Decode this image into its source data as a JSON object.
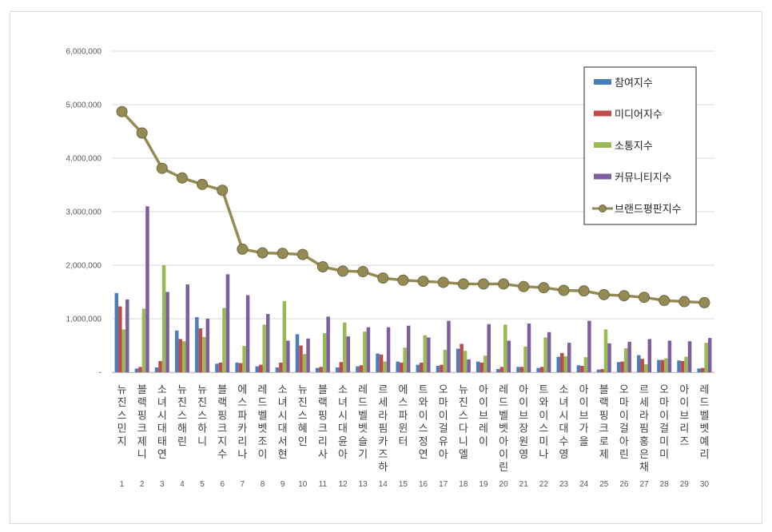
{
  "chart_data": {
    "type": "bar",
    "title": "",
    "xlabel": "",
    "ylabel": "",
    "ylim": [
      0,
      6000000
    ],
    "yticks": [
      "-",
      "1,000,000",
      "2,000,000",
      "3,000,000",
      "4,000,000",
      "5,000,000",
      "6,000,000"
    ],
    "grid": true,
    "legend_position": "top-right",
    "categories": [
      "뉴진스 민지",
      "블랙핑크 제니",
      "소녀시대 태연",
      "뉴진스 해린",
      "뉴진스 하니",
      "블랙핑크 지수",
      "에스파 카리나",
      "레드벨벳 조이",
      "소녀시대 서현",
      "뉴진스 혜인",
      "블랙핑크 리사",
      "소녀시대 윤아",
      "레드벨벳 슬기",
      "르세라핌 카즈하",
      "에스파 윈터",
      "트와이스 정연",
      "오마이걸 유아",
      "뉴진스 다니엘",
      "아이브 레이",
      "레드벨벳 아이린",
      "아이브 장원영",
      "트와이스 미나",
      "소녀시대 수영",
      "아이브 가을",
      "블랙핑크 로제",
      "오마이걸 아린",
      "르세라핌 홍은채",
      "오마이걸 미미",
      "아이브 리즈",
      "레드벨벳 예리"
    ],
    "ranks": [
      "1",
      "2",
      "3",
      "4",
      "5",
      "6",
      "7",
      "8",
      "9",
      "10",
      "11",
      "12",
      "13",
      "14",
      "15",
      "16",
      "17",
      "18",
      "19",
      "20",
      "21",
      "22",
      "23",
      "24",
      "25",
      "26",
      "27",
      "28",
      "29",
      "30"
    ],
    "series": [
      {
        "name": "참여지수",
        "kind": "bar",
        "color": "#4a7ebb",
        "values": [
          1480000,
          70000,
          90000,
          780000,
          1030000,
          160000,
          180000,
          110000,
          90000,
          710000,
          80000,
          90000,
          110000,
          350000,
          200000,
          140000,
          120000,
          440000,
          200000,
          60000,
          100000,
          80000,
          290000,
          130000,
          50000,
          190000,
          320000,
          230000,
          220000,
          70000
        ]
      },
      {
        "name": "미디어지수",
        "kind": "bar",
        "color": "#be4b48",
        "values": [
          1230000,
          100000,
          210000,
          620000,
          820000,
          180000,
          170000,
          140000,
          180000,
          500000,
          100000,
          190000,
          130000,
          330000,
          180000,
          180000,
          140000,
          530000,
          180000,
          100000,
          100000,
          100000,
          360000,
          120000,
          60000,
          200000,
          250000,
          230000,
          210000,
          80000
        ]
      },
      {
        "name": "소통지수",
        "kind": "bar",
        "color": "#98b954",
        "values": [
          800000,
          1190000,
          2000000,
          580000,
          660000,
          1200000,
          490000,
          890000,
          1330000,
          340000,
          730000,
          930000,
          760000,
          200000,
          460000,
          690000,
          420000,
          400000,
          310000,
          890000,
          480000,
          650000,
          300000,
          280000,
          800000,
          450000,
          150000,
          260000,
          290000,
          550000
        ]
      },
      {
        "name": "커뮤니티지수",
        "kind": "bar",
        "color": "#7d5fa0",
        "values": [
          1360000,
          3100000,
          1500000,
          1640000,
          1000000,
          1830000,
          1440000,
          1090000,
          590000,
          630000,
          1040000,
          670000,
          840000,
          840000,
          870000,
          650000,
          960000,
          240000,
          900000,
          590000,
          910000,
          750000,
          550000,
          960000,
          540000,
          570000,
          620000,
          590000,
          580000,
          640000
        ]
      },
      {
        "name": "브랜드평판지수",
        "kind": "line",
        "color": "#948a54",
        "values": [
          4870000,
          4470000,
          3810000,
          3630000,
          3510000,
          3400000,
          2300000,
          2230000,
          2220000,
          2200000,
          1970000,
          1890000,
          1880000,
          1760000,
          1720000,
          1700000,
          1680000,
          1650000,
          1650000,
          1650000,
          1600000,
          1580000,
          1530000,
          1520000,
          1450000,
          1430000,
          1400000,
          1340000,
          1320000,
          1300000
        ]
      }
    ]
  }
}
